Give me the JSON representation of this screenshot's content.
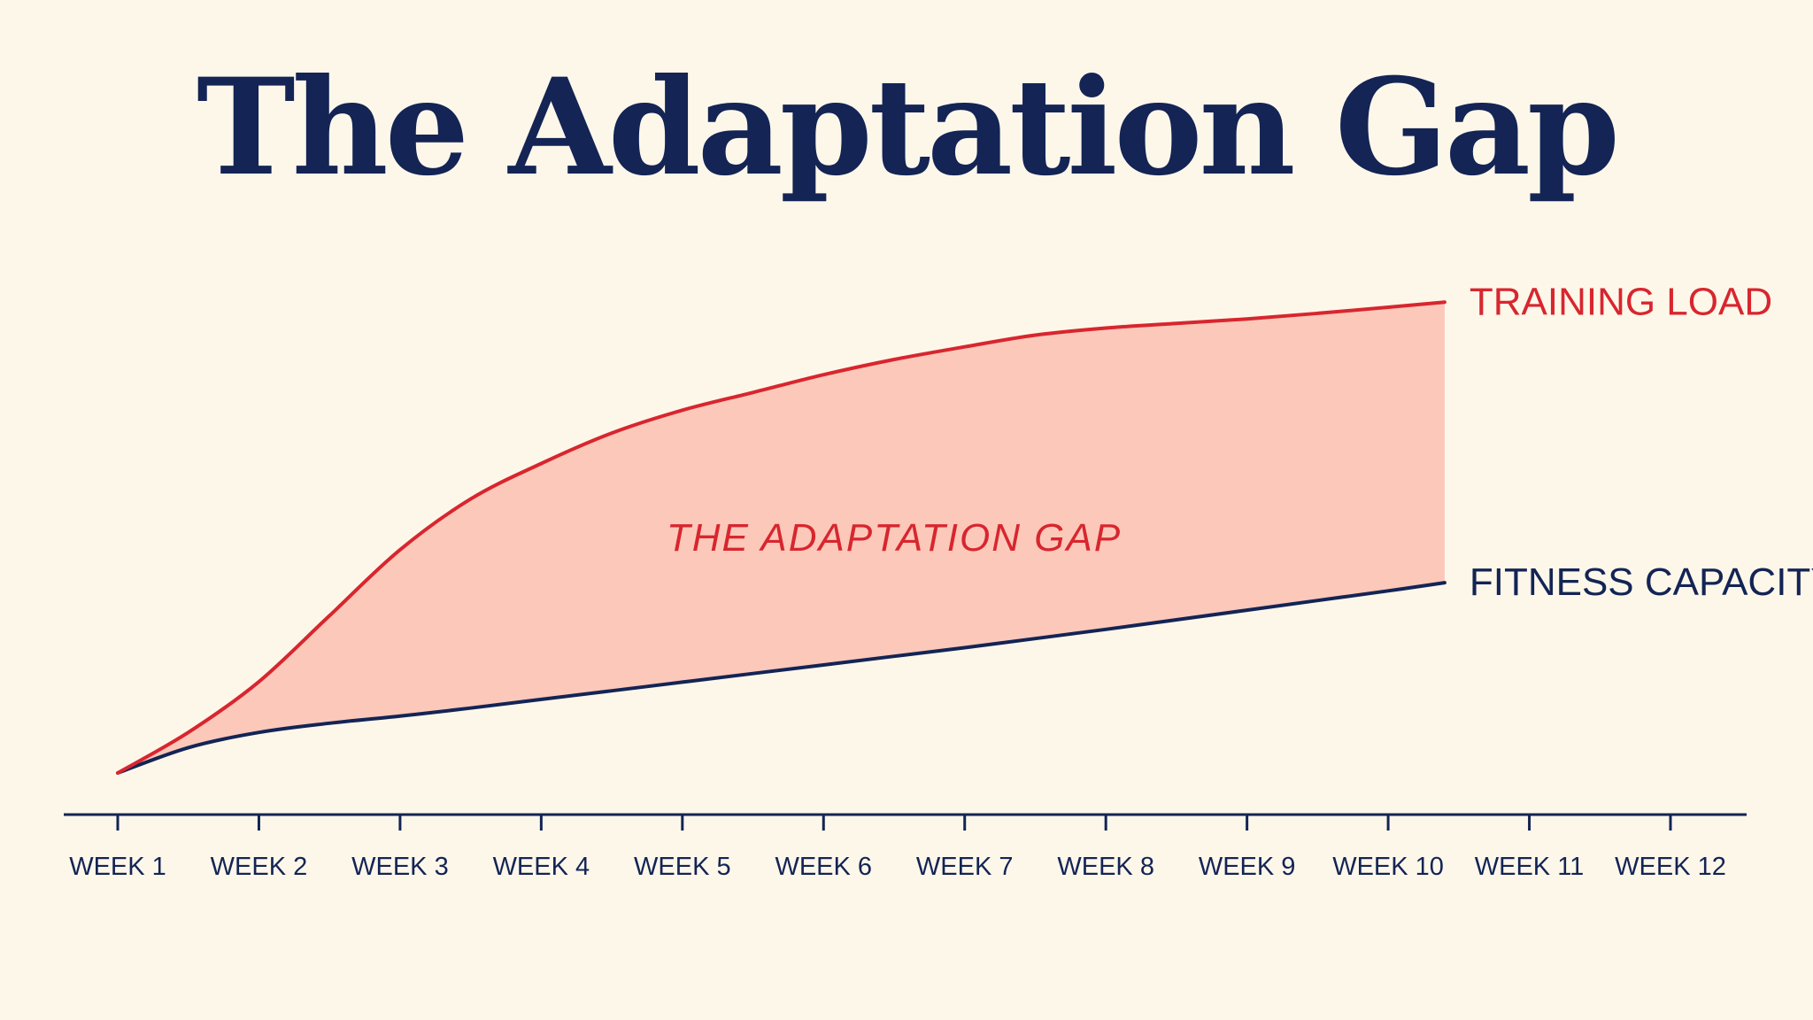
{
  "title": "The Adaptation Gap",
  "chart_data": {
    "type": "area",
    "title": "The Adaptation Gap",
    "categories": [
      "WEEK 1",
      "WEEK 2",
      "WEEK 3",
      "WEEK 4",
      "WEEK 5",
      "WEEK 6",
      "WEEK 7",
      "WEEK 8",
      "WEEK 9",
      "WEEK 10",
      "WEEK 11",
      "WEEK 12"
    ],
    "series": [
      {
        "name": "TRAINING LOAD",
        "x": [
          1,
          1.5,
          2,
          2.5,
          3,
          3.5,
          4,
          4.5,
          5,
          5.5,
          6,
          6.5,
          7,
          7.5,
          8,
          8.5,
          9,
          9.5,
          10,
          10.4
        ],
        "values": [
          0,
          8,
          18,
          31,
          44,
          54,
          61,
          67,
          71.5,
          75,
          78.5,
          81.5,
          84,
          86.3,
          87.7,
          88.6,
          89.5,
          90.6,
          91.8,
          92.8
        ]
      },
      {
        "name": "FITNESS CAPACITY",
        "x": [
          1,
          1.5,
          2,
          2.5,
          3,
          3.5,
          4,
          4.5,
          5,
          5.5,
          6,
          6.5,
          7,
          7.5,
          8,
          8.5,
          9,
          9.5,
          10,
          10.4
        ],
        "values": [
          0,
          5,
          8,
          9.8,
          11.2,
          12.8,
          14.5,
          16.2,
          17.9,
          19.6,
          21.3,
          23,
          24.7,
          26.5,
          28.3,
          30.2,
          32.1,
          34,
          35.9,
          37.5
        ]
      }
    ],
    "annotation": "THE ADAPTATION GAP",
    "xlim": [
      1,
      12
    ],
    "ylim": [
      0,
      100
    ],
    "grid": false,
    "legend": "labels at line ends (right)",
    "colors": {
      "TRAINING LOAD": "#d8262e",
      "FITNESS CAPACITY": "#132455",
      "gap_fill": "#fcc8ba",
      "axis": "#132455",
      "background": "#fdf7ea"
    }
  }
}
